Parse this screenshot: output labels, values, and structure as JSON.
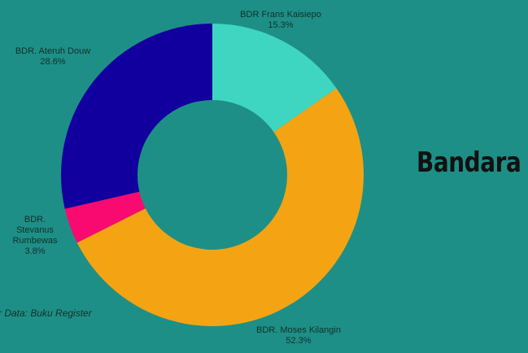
{
  "chart_data": {
    "type": "pie",
    "subtype": "donut",
    "title": "Bandara",
    "source": "r Data: Buku Register",
    "colors": [
      "#3fd6c1",
      "#f4a413",
      "#f80a70",
      "#11009e"
    ],
    "slices": [
      {
        "name": "BDR Frans Kaisiepo",
        "label_lines": [
          "BDR Frans Kaisiepo",
          "15.3%"
        ],
        "value": 15.3
      },
      {
        "name": "BDR. Moses Kilangin",
        "label_lines": [
          "BDR. Moses Kilangin",
          "52.3%"
        ],
        "value": 52.3
      },
      {
        "name": "BDR. Stevanus Rumbewas",
        "label_lines": [
          "BDR.",
          "Stevanus",
          "Rumbewas",
          "3.8%"
        ],
        "value": 3.8
      },
      {
        "name": "BDR. Aterun Douw",
        "label_lines": [
          "BDR. Ateruh Douw",
          "28.6%"
        ],
        "value": 28.6
      }
    ]
  }
}
